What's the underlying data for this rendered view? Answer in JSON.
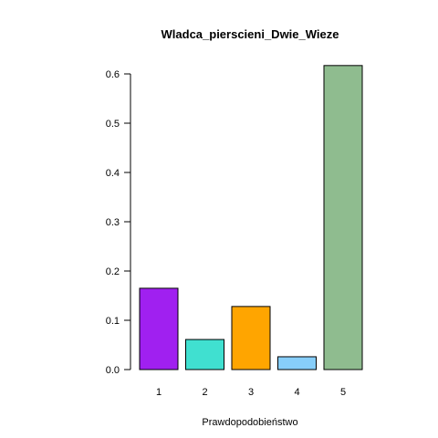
{
  "chart_data": {
    "type": "bar",
    "title": "Wladca_pierscieni_Dwie_Wieze",
    "xlabel": "Prawdopodobieństwo",
    "ylabel": "",
    "categories": [
      "1",
      "2",
      "3",
      "4",
      "5"
    ],
    "values": [
      0.165,
      0.061,
      0.128,
      0.026,
      0.617
    ],
    "colors": [
      "#a020f0",
      "#40e0d0",
      "#ffa500",
      "#87cefa",
      "#8fbc8f"
    ],
    "ylim": [
      0,
      0.6
    ],
    "yticks": [
      "0.0",
      "0.1",
      "0.2",
      "0.3",
      "0.4",
      "0.5",
      "0.6"
    ],
    "grid": false,
    "legend": "none"
  }
}
